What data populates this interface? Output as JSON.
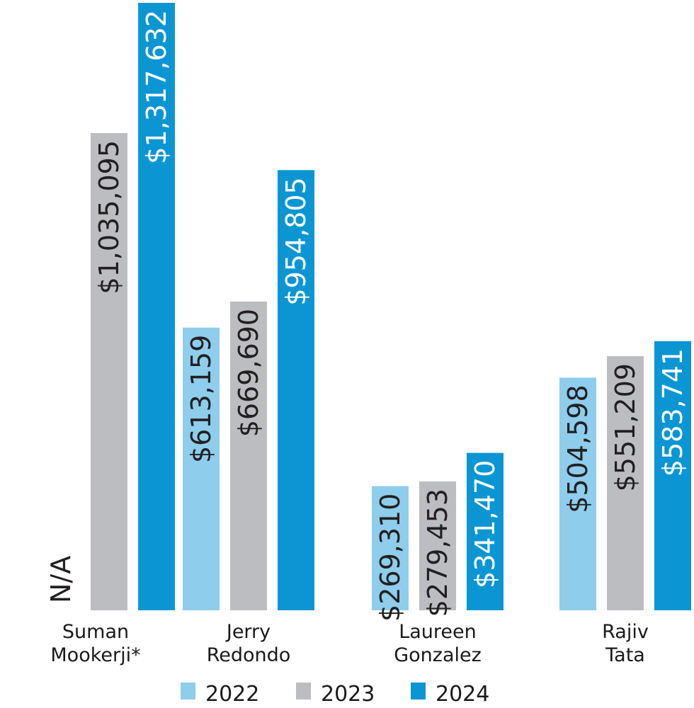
{
  "chart_data": {
    "type": "bar",
    "title": "",
    "xlabel": "",
    "ylabel": "",
    "ylim": [
      0,
      1317632
    ],
    "grid": false,
    "legend_position": "bottom",
    "categories": [
      [
        "Suman",
        "Mookerji*"
      ],
      [
        "Jerry",
        "Redondo"
      ],
      [
        "Laureen",
        "Gonzalez"
      ],
      [
        "Rajiv",
        "Tata"
      ]
    ],
    "series": [
      {
        "name": "2022",
        "color": "#8ecdec",
        "label_color": "#231f20",
        "values": [
          null,
          613159,
          269310,
          504598
        ],
        "labels": [
          "N/A",
          "$613,159",
          "$269,310",
          "$504,598"
        ]
      },
      {
        "name": "2023",
        "color": "#bcbdc0",
        "label_color": "#231f20",
        "values": [
          1035095,
          669690,
          279453,
          551209
        ],
        "labels": [
          "$1,035,095",
          "$669,690",
          "$279,453",
          "$551,209"
        ]
      },
      {
        "name": "2024",
        "color": "#0b96d3",
        "label_color": "#ffffff",
        "values": [
          1317632,
          954805,
          341470,
          583741
        ],
        "labels": [
          "$1,317,632",
          "$954,805",
          "$341,470",
          "$583,741"
        ]
      }
    ]
  }
}
